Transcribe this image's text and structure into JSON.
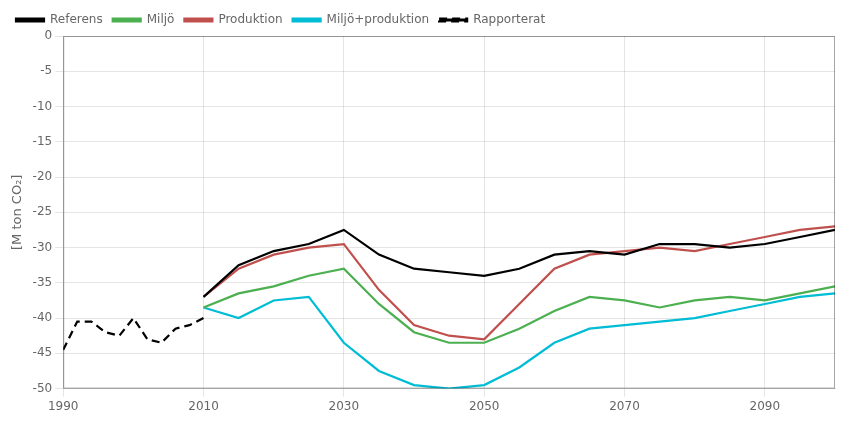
{
  "chart_data": {
    "type": "line",
    "ylabel": "[M ton CO₂]",
    "xlim": [
      1990,
      2100
    ],
    "xticks": [
      1990,
      2010,
      2030,
      2050,
      2070,
      2090
    ],
    "ylim": [
      -50,
      0
    ],
    "yticks": [
      0,
      -5,
      -10,
      -15,
      -20,
      -25,
      -30,
      -35,
      -40,
      -45,
      -50
    ],
    "grid": true,
    "legend": "upper left",
    "series": [
      {
        "name": "Referens",
        "color": "#000000",
        "line_style": "solid",
        "x": [
          2010,
          2015,
          2020,
          2025,
          2030,
          2035,
          2040,
          2045,
          2050,
          2055,
          2060,
          2065,
          2070,
          2075,
          2080,
          2085,
          2090,
          2095,
          2100
        ],
        "values": [
          -37.0,
          -32.5,
          -30.5,
          -29.5,
          -27.5,
          -31.0,
          -33.0,
          -33.5,
          -34.0,
          -33.0,
          -31.0,
          -30.5,
          -31.0,
          -29.5,
          -29.5,
          -30.0,
          -29.5,
          -28.5,
          -27.5
        ]
      },
      {
        "name": "Miljö",
        "color": "#4caf50",
        "line_style": "solid",
        "x": [
          2010,
          2015,
          2020,
          2025,
          2030,
          2035,
          2040,
          2045,
          2050,
          2055,
          2060,
          2065,
          2070,
          2075,
          2080,
          2085,
          2090,
          2095,
          2100
        ],
        "values": [
          -38.5,
          -36.5,
          -35.5,
          -34.0,
          -33.0,
          -38.0,
          -42.0,
          -43.5,
          -43.5,
          -41.5,
          -39.0,
          -37.0,
          -37.5,
          -38.5,
          -37.5,
          -37.0,
          -37.5,
          -36.5,
          -35.5
        ]
      },
      {
        "name": "Produktion",
        "color": "#c0504d",
        "line_style": "solid",
        "x": [
          2010,
          2015,
          2020,
          2025,
          2030,
          2035,
          2040,
          2045,
          2050,
          2055,
          2060,
          2065,
          2070,
          2075,
          2080,
          2085,
          2090,
          2095,
          2100
        ],
        "values": [
          -37.0,
          -33.0,
          -31.0,
          -30.0,
          -29.5,
          -36.0,
          -41.0,
          -42.5,
          -43.0,
          -38.0,
          -33.0,
          -31.0,
          -30.5,
          -30.0,
          -30.5,
          -29.5,
          -28.5,
          -27.5,
          -27.0
        ]
      },
      {
        "name": "Miljö+produktion",
        "color": "#00bcd4",
        "line_style": "solid",
        "x": [
          2010,
          2015,
          2020,
          2025,
          2030,
          2035,
          2040,
          2045,
          2050,
          2055,
          2060,
          2065,
          2070,
          2075,
          2080,
          2085,
          2090,
          2095,
          2100
        ],
        "values": [
          -38.5,
          -40.0,
          -37.5,
          -37.0,
          -43.5,
          -47.5,
          -49.5,
          -50.0,
          -49.5,
          -47.0,
          -43.5,
          -41.5,
          -41.0,
          -40.5,
          -40.0,
          -39.0,
          -38.0,
          -37.0,
          -36.5
        ]
      },
      {
        "name": "Rapporterat",
        "color": "#000000",
        "line_style": "dashed",
        "x": [
          1990,
          1992,
          1994,
          1996,
          1998,
          2000,
          2002,
          2004,
          2006,
          2008,
          2010
        ],
        "values": [
          -44.5,
          -40.5,
          -40.5,
          -42.0,
          -42.5,
          -40.0,
          -43.0,
          -43.5,
          -41.5,
          -41.0,
          -40.0
        ]
      }
    ]
  }
}
